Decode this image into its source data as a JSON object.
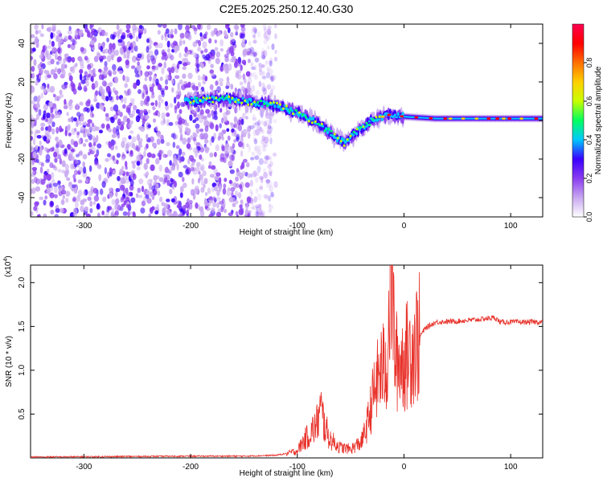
{
  "title": "C2E5.2025.250.12.40.G30",
  "colors": {
    "line": "#e8312a",
    "axis": "#000000",
    "cmap": [
      "#ffffff",
      "#c8a8f0",
      "#8a3cf0",
      "#3a00ff",
      "#00c8ff",
      "#00ff60",
      "#c8ff00",
      "#ffd000",
      "#ff7000",
      "#ff0000",
      "#ff0050"
    ]
  },
  "chart_data": [
    {
      "type": "heatmap",
      "name": "spectrogram",
      "xlabel": "Height of straight line (km)",
      "ylabel": "Frequency (Hz)",
      "xlim": [
        -350,
        130
      ],
      "ylim": [
        -50,
        50
      ],
      "xticks": [
        -300,
        -200,
        -100,
        0,
        100
      ],
      "yticks": [
        -40,
        -20,
        0,
        20,
        40
      ],
      "noise_band_km": [
        -350,
        -130
      ],
      "ridge": [
        {
          "x": -205,
          "y": 10
        },
        {
          "x": -180,
          "y": 11
        },
        {
          "x": -160,
          "y": 11
        },
        {
          "x": -140,
          "y": 9
        },
        {
          "x": -120,
          "y": 8
        },
        {
          "x": -100,
          "y": 4
        },
        {
          "x": -85,
          "y": 0
        },
        {
          "x": -70,
          "y": -6
        },
        {
          "x": -55,
          "y": -12
        },
        {
          "x": -45,
          "y": -6
        },
        {
          "x": -30,
          "y": 0
        },
        {
          "x": -15,
          "y": 3
        },
        {
          "x": 0,
          "y": 2
        },
        {
          "x": 30,
          "y": 1
        },
        {
          "x": 60,
          "y": 1
        },
        {
          "x": 90,
          "y": 1
        },
        {
          "x": 130,
          "y": 1
        }
      ]
    },
    {
      "type": "line",
      "name": "snr",
      "xlabel": "Height of straight line (km)",
      "ylabel": "SNR (10 * v/v)",
      "multiplier": "(x10",
      "multiplier_exp": "4",
      "multiplier_close": ")",
      "xlim": [
        -350,
        130
      ],
      "ylim": [
        0,
        2.2
      ],
      "xticks": [
        -300,
        -200,
        -100,
        0,
        100
      ],
      "yticks": [
        0.5,
        1.0,
        1.5,
        2.0
      ],
      "series": [
        {
          "name": "SNR",
          "points": [
            [
              -350,
              0.01
            ],
            [
              -200,
              0.02
            ],
            [
              -150,
              0.02
            ],
            [
              -120,
              0.03
            ],
            [
              -110,
              0.05
            ],
            [
              -100,
              0.08
            ],
            [
              -95,
              0.18
            ],
            [
              -88,
              0.28
            ],
            [
              -82,
              0.38
            ],
            [
              -78,
              0.55
            ],
            [
              -75,
              0.4
            ],
            [
              -70,
              0.22
            ],
            [
              -60,
              0.12
            ],
            [
              -50,
              0.1
            ],
            [
              -40,
              0.18
            ],
            [
              -35,
              0.35
            ],
            [
              -28,
              0.75
            ],
            [
              -22,
              1.0
            ],
            [
              -16,
              1.05
            ],
            [
              -12,
              2.2
            ],
            [
              -8,
              1.1
            ],
            [
              0,
              1.12
            ],
            [
              10,
              1.3
            ],
            [
              20,
              1.48
            ],
            [
              30,
              1.55
            ],
            [
              50,
              1.56
            ],
            [
              70,
              1.58
            ],
            [
              85,
              1.6
            ],
            [
              90,
              1.55
            ],
            [
              100,
              1.55
            ],
            [
              130,
              1.55
            ]
          ]
        }
      ]
    },
    {
      "type": "colorbar",
      "name": "colorbar",
      "label": "Normalized spectral amplitude",
      "range": [
        0,
        1
      ],
      "ticks": [
        0.0,
        0.2,
        0.4,
        0.6,
        0.8
      ]
    }
  ]
}
